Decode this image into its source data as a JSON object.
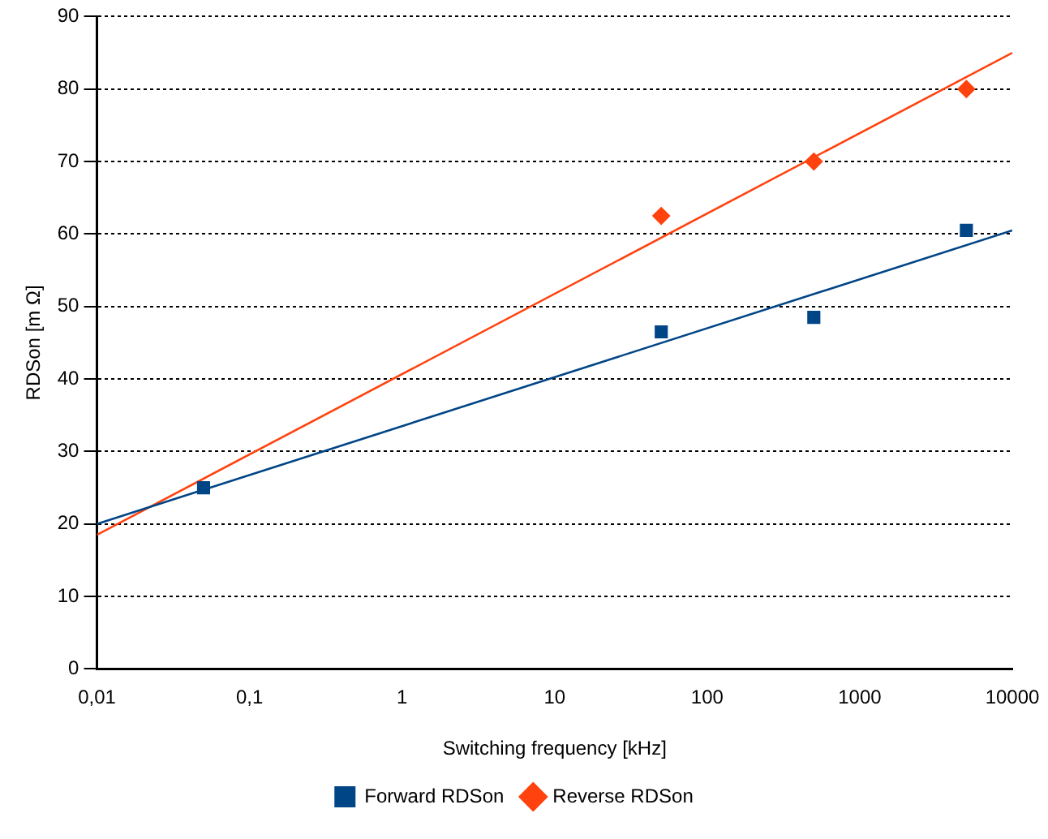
{
  "chart_data": {
    "type": "scatter",
    "xlabel": "Switching frequency [kHz]",
    "ylabel": "RDSon [m Ω]",
    "log": "x",
    "xlim": [
      0.01,
      10000
    ],
    "xticks": [
      {
        "value": 0.01,
        "label": "0,01"
      },
      {
        "value": 0.1,
        "label": "0,1"
      },
      1,
      10,
      100,
      1000,
      10000
    ],
    "ylim": [
      0,
      90
    ],
    "yticks": [
      0,
      10,
      20,
      30,
      40,
      50,
      60,
      70,
      80,
      90
    ],
    "grid": "y",
    "legend": "bottom",
    "series": [
      {
        "name": "Forward RDSon",
        "marker": "square",
        "color": "#004586",
        "x": [
          0.05,
          50,
          500,
          5000
        ],
        "values": [
          25,
          46.5,
          48.5,
          60.5
        ]
      },
      {
        "name": "Reverse RDSon",
        "marker": "diamond",
        "color": "#ff420e",
        "x": [
          50,
          500,
          5000
        ],
        "values": [
          62.5,
          70,
          80
        ]
      },
      {
        "type": "line",
        "color": "#004586",
        "x": [
          0.01,
          10000
        ],
        "values": [
          20,
          60.5
        ]
      },
      {
        "type": "line",
        "color": "#ff420e",
        "x": [
          0.01,
          10000
        ],
        "values": [
          18.5,
          85
        ]
      }
    ]
  }
}
